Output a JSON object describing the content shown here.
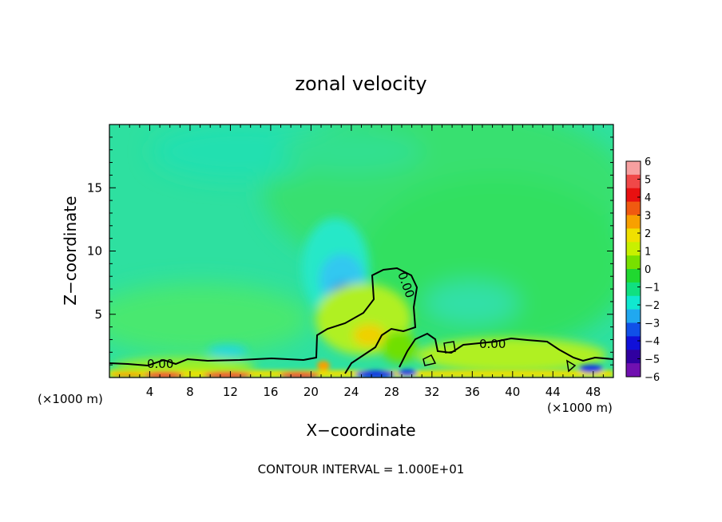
{
  "chart_data": {
    "type": "heatmap",
    "title": "zonal velocity",
    "xlabel": "X−coordinate",
    "ylabel": "Z−coordinate",
    "x_unit_left": "(×1000 m)",
    "x_unit_right": "(×1000 m)",
    "xlim": [
      0,
      50
    ],
    "ylim": [
      0,
      20
    ],
    "x_ticks": [
      "4",
      "8",
      "12",
      "16",
      "20",
      "24",
      "28",
      "32",
      "36",
      "40",
      "44",
      "48"
    ],
    "y_ticks": [
      "5",
      "10",
      "15"
    ],
    "footer": "CONTOUR INTERVAL = 1.000E+01",
    "contour_label": "0.00",
    "colorbar": {
      "labels": [
        "6",
        "5",
        "4",
        "3",
        "2",
        "1",
        "0",
        "−1",
        "−2",
        "−3",
        "−4",
        "−5",
        "−6"
      ],
      "colors": [
        "#f7a0a0",
        "#f04848",
        "#e81010",
        "#f05a10",
        "#f8a000",
        "#f0e000",
        "#c8f000",
        "#78e000",
        "#20d830",
        "#10e080",
        "#10e8d0",
        "#20a8f0",
        "#1050e8",
        "#1010d8",
        "#3000a0",
        "#7010b0"
      ]
    }
  }
}
